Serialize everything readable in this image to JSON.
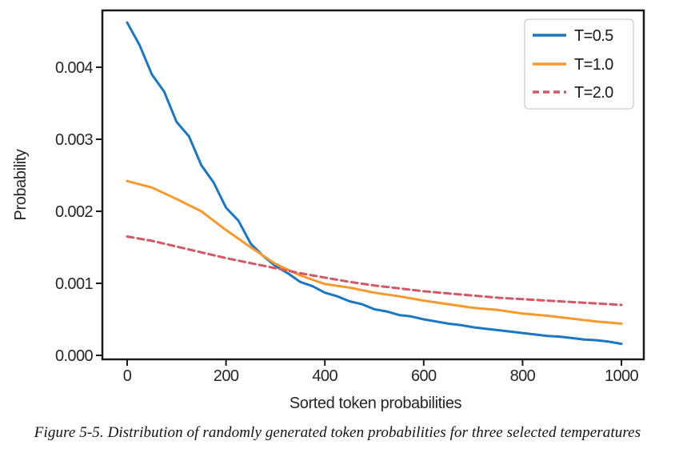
{
  "figure": {
    "caption": "Figure 5-5. Distribution of randomly generated token probabilities for three selected temperatures"
  },
  "chart_data": {
    "type": "line",
    "title": "",
    "xlabel": "Sorted token probabilities",
    "ylabel": "Probability",
    "xlim": [
      0,
      1000
    ],
    "ylim": [
      0,
      0.00479
    ],
    "xticks": [
      0,
      200,
      400,
      600,
      800,
      1000
    ],
    "yticks": [
      0,
      0.001,
      0.002,
      0.003,
      0.004
    ],
    "ytick_labels": [
      "0.000",
      "0.001",
      "0.002",
      "0.003",
      "0.004"
    ],
    "grid": false,
    "legend_position": "upper right",
    "frame_color": "#1a1a1a",
    "series": [
      {
        "name": "T=0.5",
        "color": "#1b76c3",
        "style": "solid",
        "x": [
          0,
          25,
          50,
          75,
          100,
          125,
          150,
          175,
          200,
          225,
          250,
          275,
          300,
          325,
          350,
          375,
          400,
          425,
          450,
          475,
          500,
          525,
          550,
          575,
          600,
          625,
          650,
          675,
          700,
          725,
          750,
          775,
          800,
          825,
          850,
          875,
          900,
          925,
          950,
          975,
          1000
        ],
        "values": [
          0.00462,
          0.00431,
          0.0039,
          0.00366,
          0.00324,
          0.00304,
          0.00264,
          0.0024,
          0.00205,
          0.00187,
          0.00155,
          0.00138,
          0.00124,
          0.00114,
          0.00102,
          0.00096,
          0.00087,
          0.00082,
          0.00075,
          0.00071,
          0.00064,
          0.00061,
          0.00056,
          0.00054,
          0.0005,
          0.00047,
          0.00044,
          0.00042,
          0.00039,
          0.00037,
          0.00035,
          0.00033,
          0.00031,
          0.00029,
          0.00027,
          0.00026,
          0.00024,
          0.00022,
          0.00021,
          0.00019,
          0.00016
        ]
      },
      {
        "name": "T=1.0",
        "color": "#f8992e",
        "style": "solid",
        "x": [
          0,
          50,
          100,
          150,
          200,
          250,
          300,
          350,
          400,
          450,
          500,
          550,
          600,
          650,
          700,
          750,
          800,
          850,
          900,
          950,
          1000
        ],
        "values": [
          0.00242,
          0.00233,
          0.00217,
          0.002,
          0.00174,
          0.0015,
          0.00127,
          0.00111,
          0.00099,
          0.00094,
          0.00087,
          0.00082,
          0.00076,
          0.00071,
          0.00066,
          0.00063,
          0.00058,
          0.00055,
          0.00051,
          0.00047,
          0.00044
        ]
      },
      {
        "name": "T=2.0",
        "color": "#d25866",
        "style": "dashed",
        "x": [
          0,
          50,
          100,
          150,
          200,
          250,
          300,
          350,
          400,
          450,
          500,
          550,
          600,
          650,
          700,
          750,
          800,
          850,
          900,
          950,
          1000
        ],
        "values": [
          0.00165,
          0.00159,
          0.00151,
          0.00143,
          0.00135,
          0.00128,
          0.00121,
          0.00114,
          0.00108,
          0.00102,
          0.00097,
          0.00093,
          0.00089,
          0.00086,
          0.00083,
          0.0008,
          0.00078,
          0.00076,
          0.00074,
          0.00072,
          0.0007
        ]
      }
    ]
  }
}
